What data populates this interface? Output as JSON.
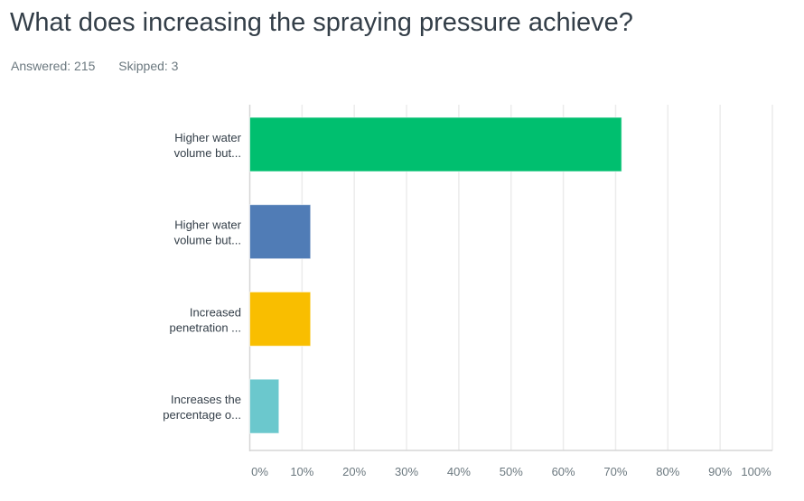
{
  "question": {
    "title": "What does increasing the spraying pressure achieve?",
    "answered_label": "Answered: 215",
    "skipped_label": "Skipped: 3"
  },
  "chart_data": {
    "type": "bar",
    "orientation": "horizontal",
    "categories": [
      [
        "Higher water",
        "volume but..."
      ],
      [
        "Higher water",
        "volume but..."
      ],
      [
        "Increased",
        "penetration ..."
      ],
      [
        "Increases the",
        "percentage o..."
      ]
    ],
    "values": [
      71.16,
      11.63,
      11.63,
      5.58
    ],
    "colors": [
      "#00bf6f",
      "#507cb6",
      "#f9be00",
      "#6bc8cd"
    ],
    "xlim": [
      0,
      100
    ],
    "x_ticks": [
      "0%",
      "10%",
      "20%",
      "30%",
      "40%",
      "50%",
      "60%",
      "70%",
      "80%",
      "90%",
      "100%"
    ],
    "grid": true,
    "legend": "none"
  }
}
